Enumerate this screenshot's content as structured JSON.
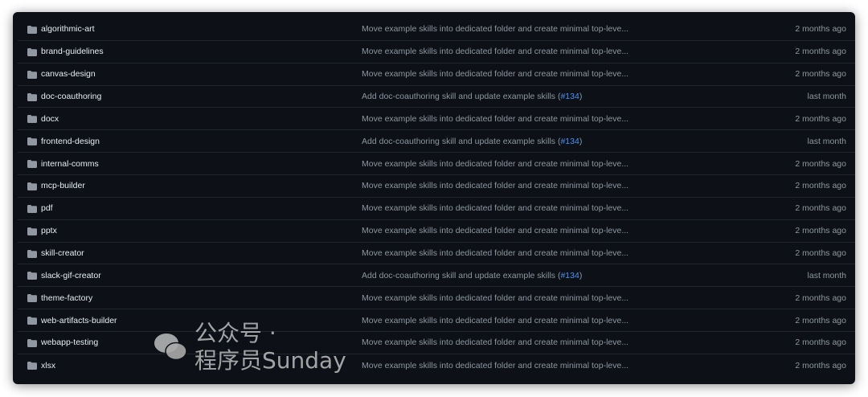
{
  "files": [
    {
      "name": "algorithmic-art",
      "message": "Move example skills into dedicated folder and create minimal top-leve...",
      "link": "",
      "suffix": "",
      "time": "2 months ago"
    },
    {
      "name": "brand-guidelines",
      "message": "Move example skills into dedicated folder and create minimal top-leve...",
      "link": "",
      "suffix": "",
      "time": "2 months ago"
    },
    {
      "name": "canvas-design",
      "message": "Move example skills into dedicated folder and create minimal top-leve...",
      "link": "",
      "suffix": "",
      "time": "2 months ago"
    },
    {
      "name": "doc-coauthoring",
      "message": "Add doc-coauthoring skill and update example skills (",
      "link": "#134",
      "suffix": ")",
      "time": "last month"
    },
    {
      "name": "docx",
      "message": "Move example skills into dedicated folder and create minimal top-leve...",
      "link": "",
      "suffix": "",
      "time": "2 months ago"
    },
    {
      "name": "frontend-design",
      "message": "Add doc-coauthoring skill and update example skills (",
      "link": "#134",
      "suffix": ")",
      "time": "last month"
    },
    {
      "name": "internal-comms",
      "message": "Move example skills into dedicated folder and create minimal top-leve...",
      "link": "",
      "suffix": "",
      "time": "2 months ago"
    },
    {
      "name": "mcp-builder",
      "message": "Move example skills into dedicated folder and create minimal top-leve...",
      "link": "",
      "suffix": "",
      "time": "2 months ago"
    },
    {
      "name": "pdf",
      "message": "Move example skills into dedicated folder and create minimal top-leve...",
      "link": "",
      "suffix": "",
      "time": "2 months ago"
    },
    {
      "name": "pptx",
      "message": "Move example skills into dedicated folder and create minimal top-leve...",
      "link": "",
      "suffix": "",
      "time": "2 months ago"
    },
    {
      "name": "skill-creator",
      "message": "Move example skills into dedicated folder and create minimal top-leve...",
      "link": "",
      "suffix": "",
      "time": "2 months ago"
    },
    {
      "name": "slack-gif-creator",
      "message": "Add doc-coauthoring skill and update example skills (",
      "link": "#134",
      "suffix": ")",
      "time": "last month"
    },
    {
      "name": "theme-factory",
      "message": "Move example skills into dedicated folder and create minimal top-leve...",
      "link": "",
      "suffix": "",
      "time": "2 months ago"
    },
    {
      "name": "web-artifacts-builder",
      "message": "Move example skills into dedicated folder and create minimal top-leve...",
      "link": "",
      "suffix": "",
      "time": "2 months ago"
    },
    {
      "name": "webapp-testing",
      "message": "Move example skills into dedicated folder and create minimal top-leve...",
      "link": "",
      "suffix": "",
      "time": "2 months ago"
    },
    {
      "name": "xlsx",
      "message": "Move example skills into dedicated folder and create minimal top-leve...",
      "link": "",
      "suffix": "",
      "time": "2 months ago"
    }
  ],
  "icon": "folder-icon",
  "colors": {
    "background": "#0d1117",
    "text": "#e6edf3",
    "muted": "#8d96a0",
    "link": "#4493f8",
    "folder": "#9198a1"
  },
  "watermark": "公众号 · 程序员Sunday"
}
